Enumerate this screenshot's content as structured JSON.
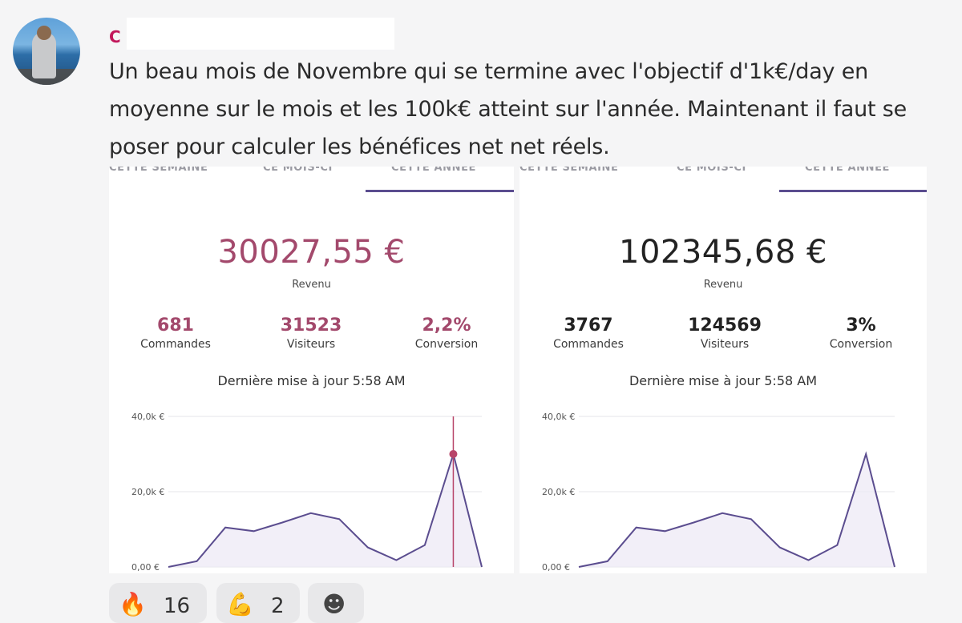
{
  "post": {
    "author": "C",
    "message": "Un beau mois de Novembre qui se termine avec l'objectif d'1k€/day en moyenne sur le mois et les 100k€ atteint sur l'année. Maintenant il faut se poser pour calculer les bénéfices net net réels."
  },
  "cards": [
    {
      "tabs": [
        "CETTE SEMAINE",
        "CE MOIS-CI",
        "CETTE ANNÉE"
      ],
      "revenue": "30027,55 €",
      "revenue_label": "Revenu",
      "stats": [
        {
          "value": "681",
          "label": "Commandes"
        },
        {
          "value": "31523",
          "label": "Visiteurs"
        },
        {
          "value": "2,2%",
          "label": "Conversion"
        }
      ],
      "updated": "Dernière mise à jour 5:58 AM",
      "accent": "#a3496c"
    },
    {
      "tabs": [
        "CETTE SEMAINE",
        "CE MOIS-CI",
        "CETTE ANNÉE"
      ],
      "revenue": "102345,68 €",
      "revenue_label": "Revenu",
      "stats": [
        {
          "value": "3767",
          "label": "Commandes"
        },
        {
          "value": "124569",
          "label": "Visiteurs"
        },
        {
          "value": "3%",
          "label": "Conversion"
        }
      ],
      "updated": "Dernière mise à jour 5:58 AM",
      "accent": "#222222"
    }
  ],
  "chart_data": [
    {
      "type": "area",
      "y_ticks": [
        "0,00 €",
        "20,0k €",
        "40,0k €"
      ],
      "ylim": [
        0,
        40000
      ],
      "values": [
        0,
        1500,
        10500,
        9500,
        11800,
        14300,
        12700,
        5200,
        1800,
        5800,
        30000,
        0
      ],
      "highlight_index": 10,
      "highlight_color": "#b8456a",
      "line_color": "#5b4d8f"
    },
    {
      "type": "area",
      "y_ticks": [
        "0,00 €",
        "20,0k €",
        "40,0k €"
      ],
      "ylim": [
        0,
        40000
      ],
      "values": [
        0,
        1500,
        10500,
        9500,
        11800,
        14300,
        12700,
        5200,
        1800,
        5800,
        30000,
        0
      ],
      "line_color": "#5b4d8f"
    }
  ],
  "reactions": [
    {
      "emoji": "🔥",
      "count": "16"
    },
    {
      "emoji": "💪",
      "count": "2"
    },
    {
      "emoji": "☻",
      "count": ""
    }
  ]
}
